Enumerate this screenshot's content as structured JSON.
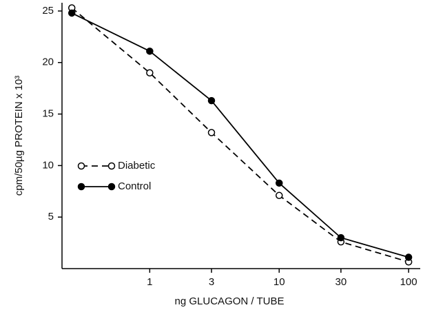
{
  "chart_data": {
    "type": "line",
    "xlabel": "ng GLUCAGON / TUBE",
    "ylabel": "cpm/50µg PROTEIN x 10³",
    "xscale": "log",
    "xlim": [
      0.21,
      123
    ],
    "xticks": [
      1,
      3,
      10,
      30,
      100
    ],
    "ylim": [
      0,
      25.8
    ],
    "yticks": [
      5,
      10,
      15,
      20,
      25
    ],
    "grid": false,
    "legend": "left",
    "series": [
      {
        "name": "Diabetic",
        "color": "#000000",
        "linestyle": "dashed",
        "marker": "open",
        "x": [
          0.25,
          1,
          3,
          10,
          30,
          100
        ],
        "values": [
          25.3,
          19.0,
          13.2,
          7.1,
          2.6,
          0.65
        ]
      },
      {
        "name": "Control",
        "color": "#000000",
        "linestyle": "solid",
        "marker": "filled",
        "x": [
          0.25,
          1,
          3,
          10,
          30,
          100
        ],
        "values": [
          24.8,
          21.1,
          16.3,
          8.3,
          3.0,
          1.1
        ]
      }
    ]
  }
}
